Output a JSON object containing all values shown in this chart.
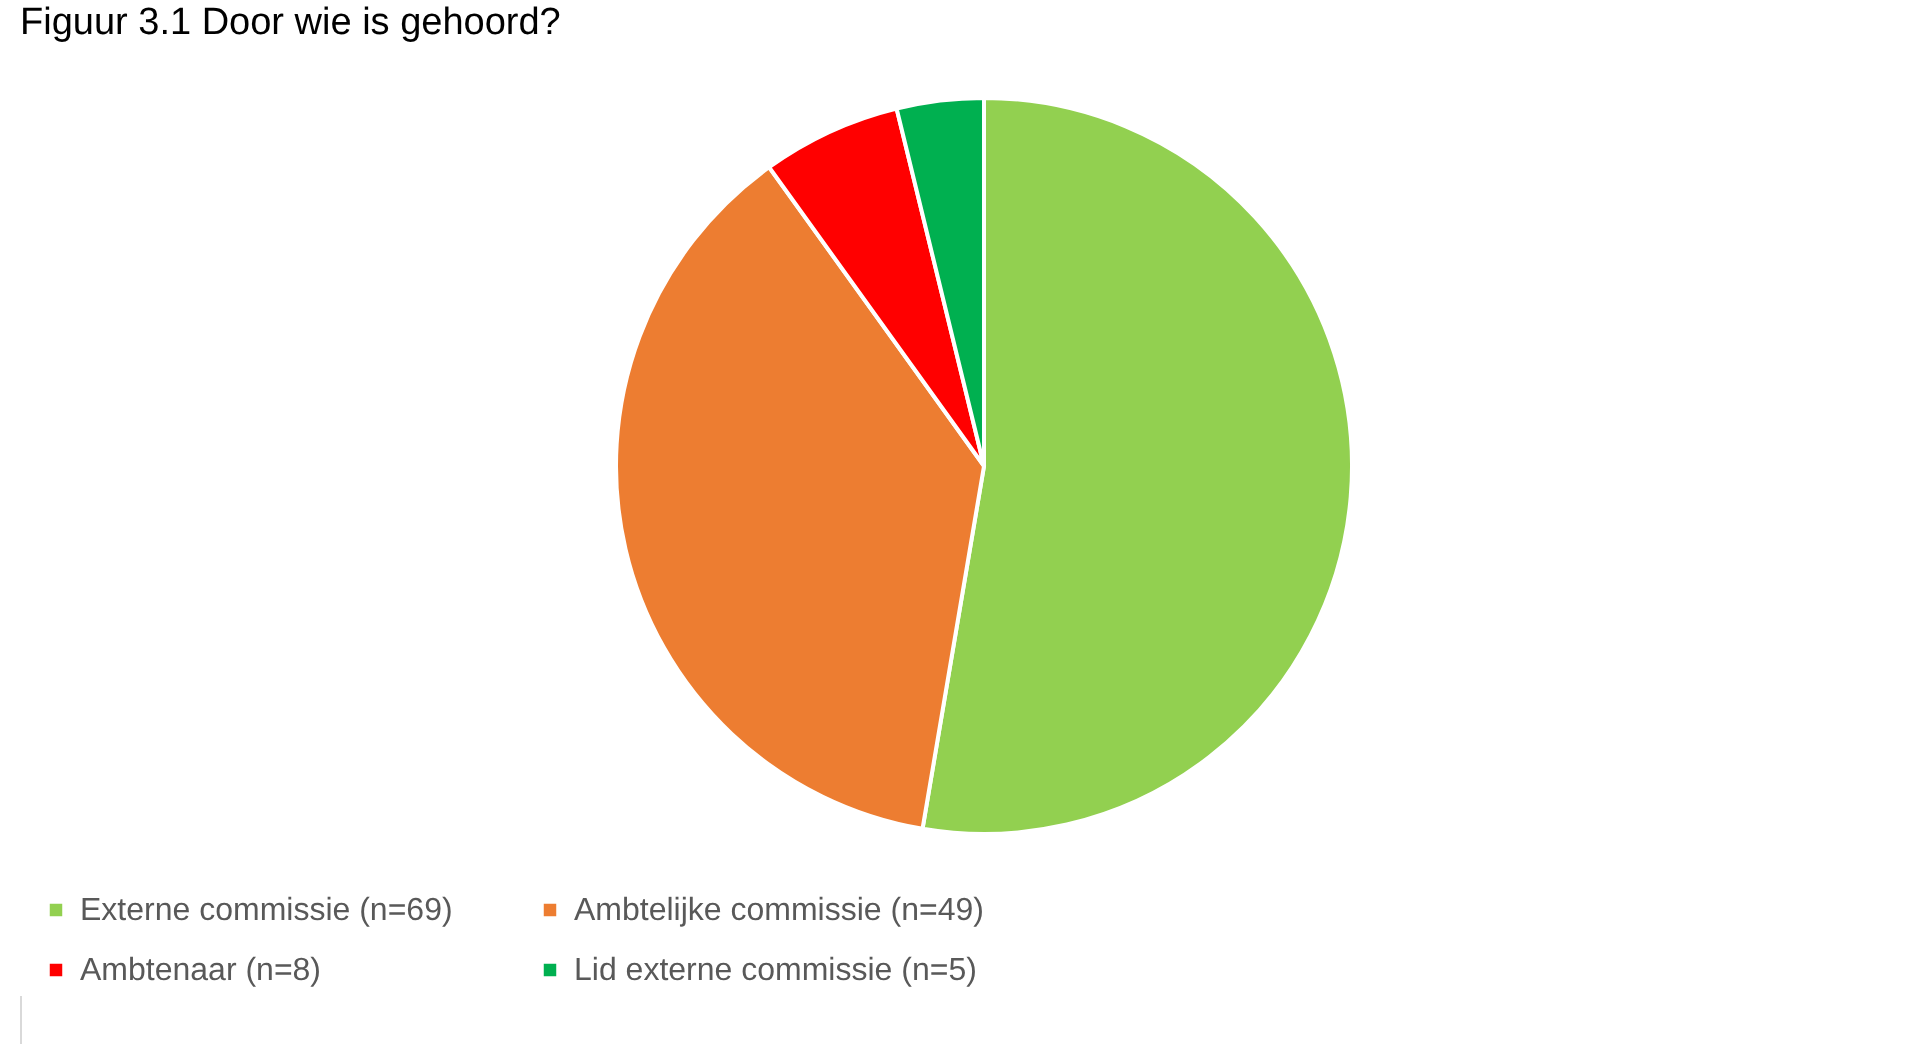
{
  "chart_data": {
    "type": "pie",
    "title": "Figuur 3.1 Door wie is gehoord?",
    "categories": [
      "Externe commissie (n=69)",
      "Ambtelijke commissie (n=49)",
      "Ambtenaar (n=8)",
      "Lid externe commissie (n=5)"
    ],
    "values": [
      69,
      49,
      8,
      5
    ],
    "colors": [
      "#92d050",
      "#ed7d31",
      "#ff0000",
      "#00b050"
    ],
    "legend": "bottom"
  }
}
